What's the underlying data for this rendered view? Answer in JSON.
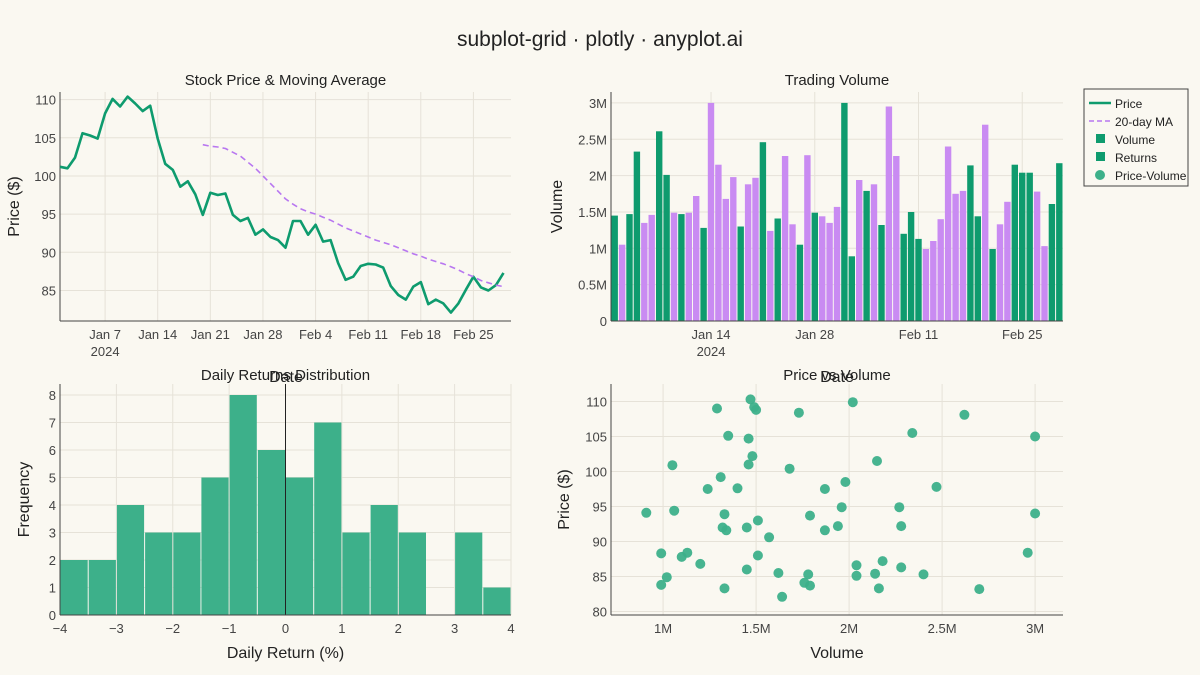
{
  "title": "subplot-grid · plotly · anyplot.ai",
  "colors": {
    "green": "#0E9B6E",
    "purple": "#C98BF2",
    "bg": "#FAF8F1"
  },
  "legend": {
    "placement": "top-right",
    "items": [
      {
        "label": "Price",
        "symbol": "line",
        "color": "#0E9B6E"
      },
      {
        "label": "20-day MA",
        "symbol": "dash",
        "color": "#B877F0"
      },
      {
        "label": "Volume",
        "symbol": "square",
        "color": "#0E9B6E"
      },
      {
        "label": "Returns",
        "symbol": "square",
        "color": "#0E9B6E"
      },
      {
        "label": "Price-Volume",
        "symbol": "circle",
        "color": "#3DB08A"
      }
    ]
  },
  "chart_data": [
    {
      "type": "line",
      "title": "Stock Price & Moving Average",
      "xlabel": "Date",
      "ylabel": "Price ($)",
      "xlim": [
        "2024-01-01",
        "2024-03-01"
      ],
      "ylim": [
        81,
        111
      ],
      "xticks": [
        "Jan 7",
        "Jan 14",
        "Jan 21",
        "Jan 28",
        "Feb 4",
        "Feb 11",
        "Feb 18",
        "Feb 25"
      ],
      "xtick_sub": "2024",
      "yticks": [
        85,
        90,
        95,
        100,
        105,
        110
      ],
      "grid": true,
      "start_date": "2024-01-01",
      "series": [
        {
          "name": "Price",
          "style": "solid",
          "color": "#0E9B6E",
          "values": [
            101.2,
            101.0,
            102.4,
            105.6,
            105.3,
            104.9,
            108.2,
            110.1,
            109.1,
            110.4,
            109.5,
            108.5,
            109.2,
            104.9,
            101.6,
            100.8,
            98.6,
            99.3,
            97.6,
            94.9,
            97.8,
            97.5,
            97.7,
            94.9,
            94.1,
            94.5,
            92.3,
            93.0,
            92.0,
            91.6,
            90.6,
            94.1,
            94.1,
            92.3,
            93.6,
            91.4,
            91.6,
            88.6,
            86.4,
            86.8,
            88.2,
            88.5,
            88.4,
            88.0,
            85.6,
            84.4,
            83.8,
            85.5,
            86.1,
            83.2,
            83.8,
            83.3,
            82.1,
            83.3,
            85.1,
            86.8,
            85.4,
            85.0,
            85.7,
            87.3
          ]
        },
        {
          "name": "20-day MA",
          "style": "dash",
          "color": "#B877F0",
          "start_index": 19,
          "values": [
            104.1,
            103.9,
            103.8,
            103.6,
            103.1,
            102.6,
            101.8,
            101.0,
            100.0,
            99.0,
            98.0,
            97.0,
            96.3,
            95.7,
            95.3,
            95.0,
            94.6,
            94.2,
            93.7,
            93.2,
            92.8,
            92.4,
            92.0,
            91.6,
            91.3,
            91.0,
            90.6,
            90.2,
            89.8,
            89.5,
            89.1,
            88.8,
            88.5,
            88.1,
            87.7,
            87.2,
            86.8,
            86.3,
            86.0,
            85.7,
            85.5
          ]
        }
      ]
    },
    {
      "type": "bar",
      "title": "Trading Volume",
      "xlabel": "Date",
      "ylabel": "Volume",
      "ylim": [
        0,
        3.15
      ],
      "unit": "M",
      "xticks": [
        "Jan 14",
        "Jan 28",
        "Feb 11",
        "Feb 25"
      ],
      "xtick_sub": "2024",
      "yticks": [
        "0",
        "0.5M",
        "1M",
        "1.5M",
        "2M",
        "2.5M",
        "3M"
      ],
      "grid": true,
      "start_date": "2024-01-01",
      "values": [
        1.45,
        1.05,
        1.47,
        2.33,
        1.35,
        1.46,
        2.61,
        2.01,
        1.49,
        1.47,
        1.49,
        1.72,
        1.28,
        3.0,
        2.15,
        1.68,
        1.98,
        1.3,
        1.88,
        1.97,
        2.46,
        1.24,
        1.41,
        2.27,
        1.33,
        1.05,
        2.28,
        1.49,
        1.44,
        1.35,
        1.57,
        3.0,
        0.89,
        1.94,
        1.79,
        1.88,
        1.32,
        2.95,
        2.27,
        1.2,
        1.5,
        1.13,
        0.99,
        1.1,
        1.4,
        2.4,
        1.75,
        1.79,
        2.14,
        1.44,
        2.7,
        0.99,
        1.33,
        1.64,
        2.15,
        2.04,
        2.04,
        1.78,
        1.03,
        1.61,
        2.17
      ],
      "colors": [
        "G",
        "P",
        "G",
        "G",
        "P",
        "P",
        "G",
        "G",
        "P",
        "G",
        "P",
        "P",
        "G",
        "P",
        "P",
        "P",
        "P",
        "G",
        "P",
        "P",
        "G",
        "P",
        "G",
        "P",
        "P",
        "G",
        "P",
        "G",
        "P",
        "P",
        "P",
        "G",
        "G",
        "P",
        "G",
        "P",
        "G",
        "P",
        "P",
        "G",
        "G",
        "G",
        "P",
        "P",
        "P",
        "P",
        "P",
        "P",
        "G",
        "G",
        "P",
        "G",
        "P",
        "P",
        "G",
        "G",
        "G",
        "P",
        "P",
        "G",
        "G"
      ]
    },
    {
      "type": "bar",
      "title": "Daily Returns Distribution",
      "xlabel": "Daily Return (%)",
      "ylabel": "Frequency",
      "xlim": [
        -4,
        4
      ],
      "ylim": [
        0,
        8.4
      ],
      "xticks": [
        "−4",
        "−3",
        "−2",
        "−1",
        "0",
        "1",
        "2",
        "3",
        "4"
      ],
      "yticks": [
        0,
        1,
        2,
        3,
        4,
        5,
        6,
        7,
        8
      ],
      "grid": true,
      "bin_width": 0.5,
      "bin_start": -4,
      "values": [
        2,
        2,
        4,
        3,
        3,
        5,
        8,
        6,
        5,
        7,
        3,
        4,
        3,
        0,
        3,
        1
      ],
      "vline_x": 0
    },
    {
      "type": "scatter",
      "title": "Price vs Volume",
      "xlabel": "Volume",
      "ylabel": "Price ($)",
      "xlim": [
        0.72,
        3.15
      ],
      "ylim": [
        79.5,
        112.5
      ],
      "xticks": [
        "1M",
        "1.5M",
        "2M",
        "2.5M",
        "3M"
      ],
      "yticks": [
        80,
        85,
        90,
        95,
        100,
        105,
        110
      ],
      "grid": true,
      "points": [
        [
          1.47,
          110.3
        ],
        [
          1.49,
          109.2
        ],
        [
          1.29,
          109.0
        ],
        [
          1.5,
          108.8
        ],
        [
          1.73,
          108.4
        ],
        [
          2.02,
          109.9
        ],
        [
          2.62,
          108.1
        ],
        [
          2.34,
          105.5
        ],
        [
          3.0,
          105.0
        ],
        [
          1.35,
          105.1
        ],
        [
          1.46,
          104.7
        ],
        [
          1.48,
          102.2
        ],
        [
          2.15,
          101.5
        ],
        [
          1.05,
          100.9
        ],
        [
          1.46,
          101.0
        ],
        [
          1.68,
          100.4
        ],
        [
          1.31,
          99.2
        ],
        [
          1.98,
          98.5
        ],
        [
          1.87,
          97.5
        ],
        [
          2.47,
          97.8
        ],
        [
          1.24,
          97.5
        ],
        [
          1.4,
          97.6
        ],
        [
          0.91,
          94.1
        ],
        [
          1.06,
          94.4
        ],
        [
          1.33,
          93.9
        ],
        [
          1.79,
          93.7
        ],
        [
          1.96,
          94.9
        ],
        [
          2.27,
          94.9
        ],
        [
          3.0,
          94.0
        ],
        [
          1.51,
          93.0
        ],
        [
          1.32,
          92.0
        ],
        [
          1.45,
          92.0
        ],
        [
          1.34,
          91.6
        ],
        [
          1.87,
          91.6
        ],
        [
          1.94,
          92.2
        ],
        [
          2.28,
          92.2
        ],
        [
          1.57,
          90.6
        ],
        [
          0.99,
          88.3
        ],
        [
          1.1,
          87.8
        ],
        [
          1.13,
          88.4
        ],
        [
          1.51,
          88.0
        ],
        [
          1.2,
          86.8
        ],
        [
          2.04,
          86.6
        ],
        [
          2.18,
          87.2
        ],
        [
          2.28,
          86.3
        ],
        [
          2.96,
          88.4
        ],
        [
          1.45,
          86.0
        ],
        [
          1.62,
          85.5
        ],
        [
          1.78,
          85.3
        ],
        [
          2.14,
          85.4
        ],
        [
          2.4,
          85.3
        ],
        [
          1.02,
          84.9
        ],
        [
          2.04,
          85.1
        ],
        [
          0.99,
          83.8
        ],
        [
          1.33,
          83.3
        ],
        [
          1.76,
          84.1
        ],
        [
          1.79,
          83.7
        ],
        [
          2.16,
          83.3
        ],
        [
          2.7,
          83.2
        ],
        [
          1.64,
          82.1
        ]
      ]
    }
  ]
}
